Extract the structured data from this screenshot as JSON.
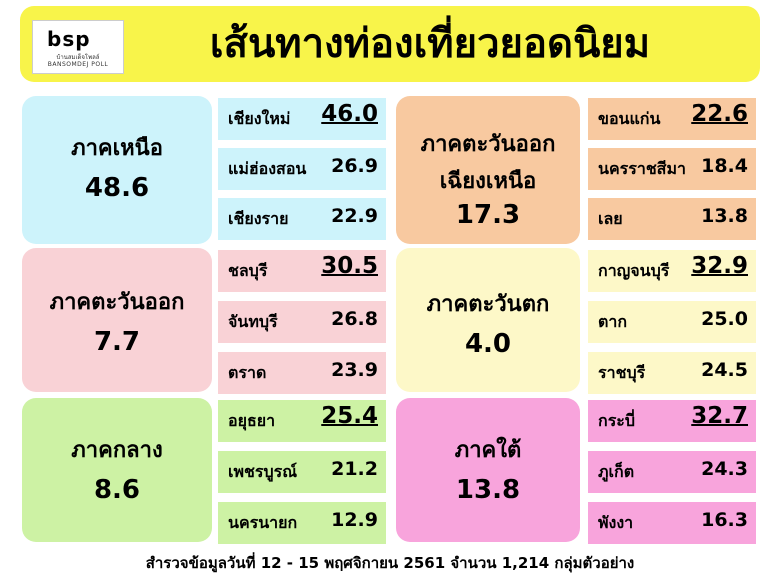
{
  "header": {
    "logo_mark": "bsp",
    "logo_sub_th": "บ้านสมเด็จโพลล์",
    "logo_sub_en": "BANSOMDEJ POLL",
    "title": "เส้นทางท่องเที่ยวยอดนิยม"
  },
  "regions": [
    {
      "name": "ภาคเหนือ",
      "value": "48.6",
      "color": "#cdf3fb",
      "provinces": [
        {
          "name": "เชียงใหม่",
          "value": "46.0"
        },
        {
          "name": "แม่ฮ่องสอน",
          "value": "26.9"
        },
        {
          "name": "เชียงราย",
          "value": "22.9"
        }
      ]
    },
    {
      "name": "ภาคตะวันออก",
      "value": "7.7",
      "color": "#f9d2d6",
      "provinces": [
        {
          "name": "ชลบุรี",
          "value": "30.5"
        },
        {
          "name": "จันทบุรี",
          "value": "26.8"
        },
        {
          "name": "ตราด",
          "value": "23.9"
        }
      ]
    },
    {
      "name": "ภาคกลาง",
      "value": "8.6",
      "color": "#cdf2a4",
      "provinces": [
        {
          "name": "อยุธยา",
          "value": "25.4"
        },
        {
          "name": "เพชรบูรณ์",
          "value": "21.2"
        },
        {
          "name": "นครนายก",
          "value": "12.9"
        }
      ]
    },
    {
      "name": "ภาคตะวันออก",
      "name2": "เฉียงเหนือ",
      "value": "17.3",
      "color": "#f8c9a0",
      "provinces": [
        {
          "name": "ขอนแก่น",
          "value": "22.6"
        },
        {
          "name": "นครราชสีมา",
          "value": "18.4"
        },
        {
          "name": "เลย",
          "value": "13.8"
        }
      ]
    },
    {
      "name": "ภาคตะวันตก",
      "value": "4.0",
      "color": "#fdf8c8",
      "provinces": [
        {
          "name": "กาญจนบุรี",
          "value": "32.9"
        },
        {
          "name": "ตาก",
          "value": "25.0"
        },
        {
          "name": "ราชบุรี",
          "value": "24.5"
        }
      ]
    },
    {
      "name": "ภาคใต้",
      "value": "13.8",
      "color": "#f8a4dc",
      "provinces": [
        {
          "name": "กระบี่",
          "value": "32.7"
        },
        {
          "name": "ภูเก็ต",
          "value": "24.3"
        },
        {
          "name": "พังงา",
          "value": "16.3"
        }
      ]
    }
  ],
  "footer": "สำรวจข้อมูลวันที่  12 - 15 พฤศจิกายน 2561  จำนวน 1,214 กลุ่มตัวอย่าง"
}
